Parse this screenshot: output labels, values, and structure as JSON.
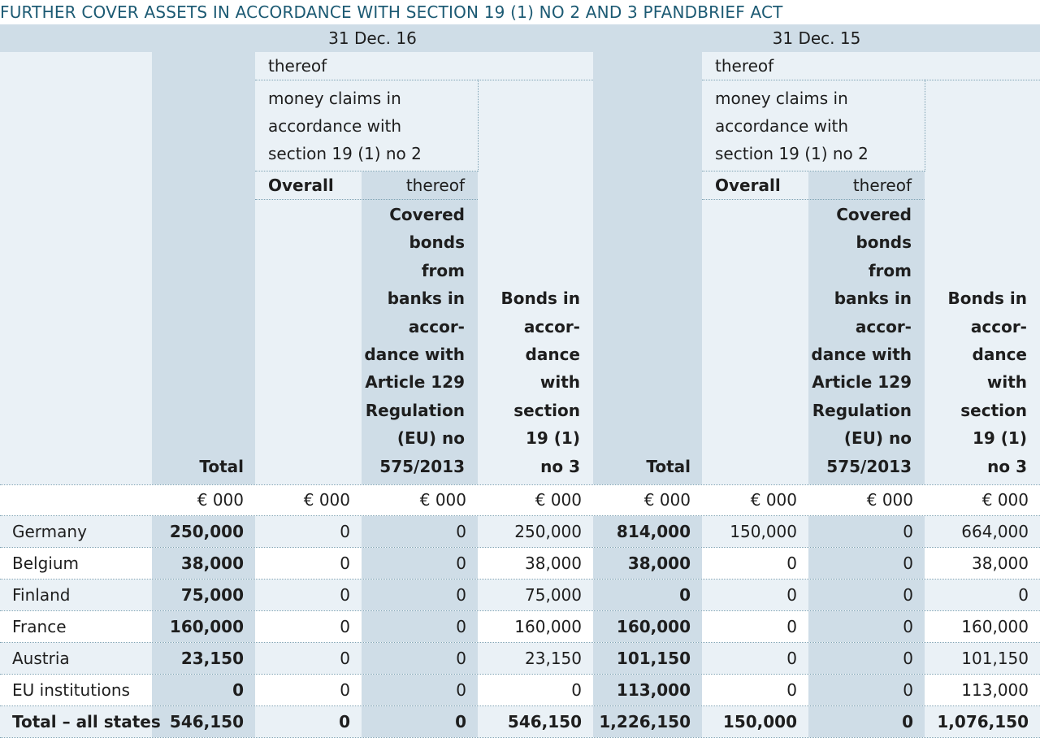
{
  "title": "FURTHER COVER ASSETS IN ACCORDANCE WITH SECTION 19 (1) NO 2 AND 3 PFANDBRIEF ACT",
  "periods": [
    "31 Dec. 16",
    "31 Dec. 15"
  ],
  "header": {
    "thereof": "thereof",
    "money_claims": [
      "money claims in",
      "accordance with",
      "section 19 (1) no 2"
    ],
    "overall": "Overall",
    "thereof_sub": "thereof",
    "covered_bonds": [
      "Covered",
      "bonds",
      "from",
      "banks in",
      "accor-",
      "dance with",
      "Article 129",
      "Regulation",
      "(EU) no",
      "575/2013"
    ],
    "bonds_in": [
      "Bonds in",
      "accor-",
      "dance",
      "with",
      "section",
      "19 (1)",
      "no 3"
    ],
    "total": "Total"
  },
  "unit": "€ 000",
  "rows": [
    {
      "label": "Germany",
      "values": [
        "250,000",
        "0",
        "0",
        "250,000",
        "814,000",
        "150,000",
        "0",
        "664,000"
      ]
    },
    {
      "label": "Belgium",
      "values": [
        "38,000",
        "0",
        "0",
        "38,000",
        "38,000",
        "0",
        "0",
        "38,000"
      ]
    },
    {
      "label": "Finland",
      "values": [
        "75,000",
        "0",
        "0",
        "75,000",
        "0",
        "0",
        "0",
        "0"
      ]
    },
    {
      "label": "France",
      "values": [
        "160,000",
        "0",
        "0",
        "160,000",
        "160,000",
        "0",
        "0",
        "160,000"
      ]
    },
    {
      "label": "Austria",
      "values": [
        "23,150",
        "0",
        "0",
        "23,150",
        "101,150",
        "0",
        "0",
        "101,150"
      ]
    },
    {
      "label": "EU institutions",
      "values": [
        "0",
        "0",
        "0",
        "0",
        "113,000",
        "0",
        "0",
        "113,000"
      ]
    }
  ],
  "total_row": {
    "label": "Total – all states",
    "values": [
      "546,150",
      "0",
      "0",
      "546,150",
      "1,226,150",
      "150,000",
      "0",
      "1,076,150"
    ]
  },
  "colors": {
    "band": "#cfdde7",
    "light": "#eaf1f6",
    "white": "#ffffff",
    "title": "#1c5a73"
  }
}
